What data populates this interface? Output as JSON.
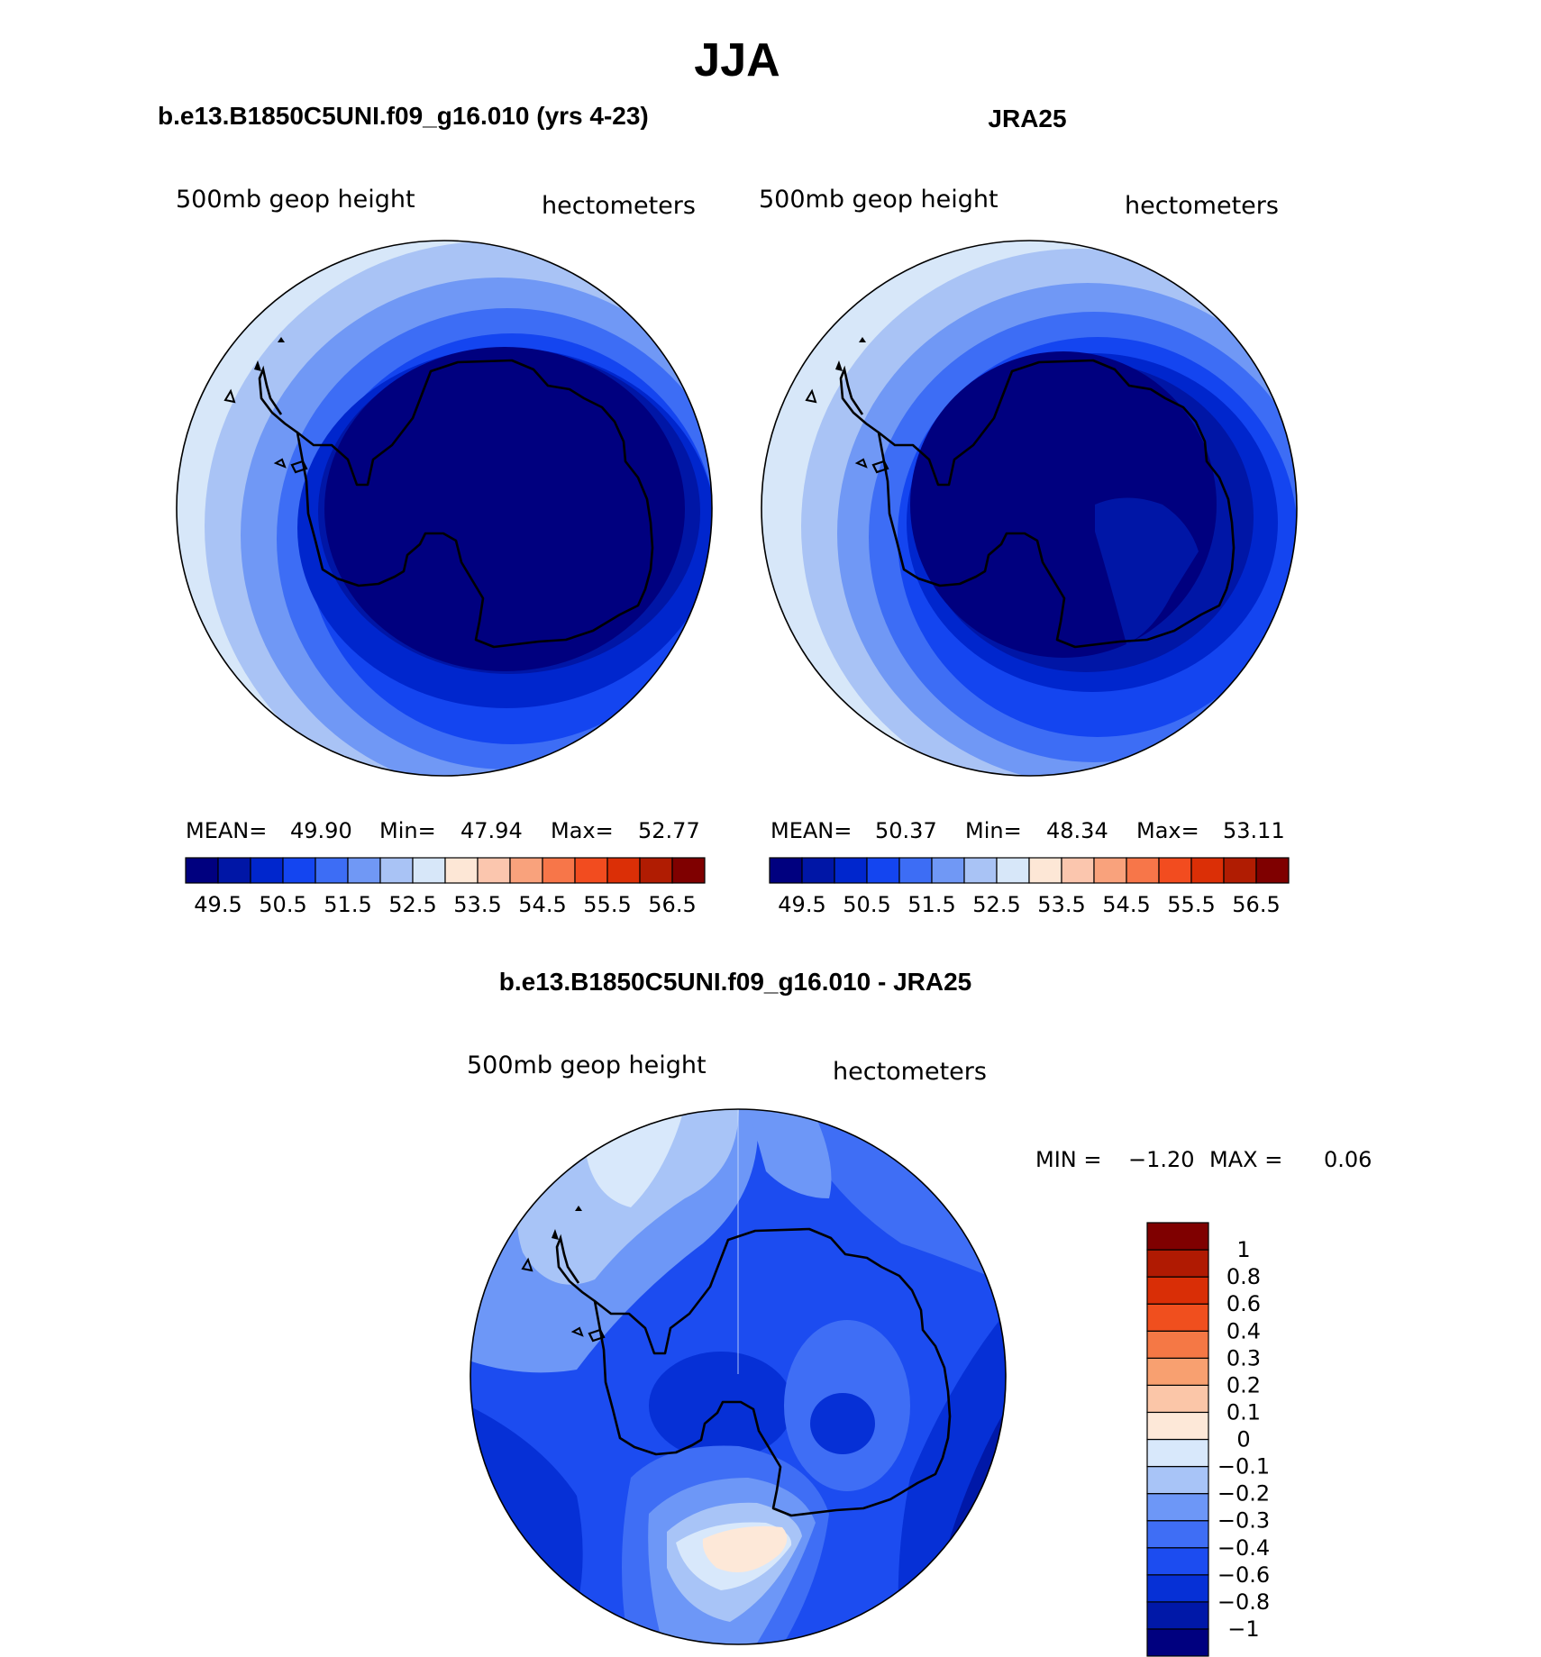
{
  "title": "JJA",
  "panels": [
    {
      "case_title": "b.e13.B1850C5UNI.f09_g16.010 (yrs 4-23)",
      "left_label": "500mb geop height",
      "right_label": "hectometers",
      "stats": {
        "mean_label": "MEAN=",
        "mean": "49.90",
        "min_label": "Min=",
        "min": "47.94",
        "max_label": "Max=",
        "max": "52.77"
      }
    },
    {
      "case_title": "JRA25",
      "left_label": "500mb geop height",
      "right_label": "hectometers",
      "stats": {
        "mean_label": "MEAN=",
        "mean": "50.37",
        "min_label": "Min=",
        "min": "48.34",
        "max_label": "Max=",
        "max": "53.11"
      }
    },
    {
      "case_title": "b.e13.B1850C5UNI.f09_g16.010 - JRA25",
      "left_label": "500mb geop height",
      "right_label": "hectometers",
      "stats": {
        "min_label": "MIN =",
        "min": "−1.20",
        "max_label": "MAX =",
        "max": "0.06"
      }
    }
  ],
  "colorbar_abs": {
    "colors": [
      "#00007f",
      "#0016a6",
      "#0026cd",
      "#1445f0",
      "#3d6df5",
      "#7098f5",
      "#a9c3f5",
      "#d7e7f9",
      "#fde7d6",
      "#fbc6ae",
      "#f9a27c",
      "#f77649",
      "#f24c1f",
      "#db2f06",
      "#b01c02",
      "#7f0000"
    ],
    "tick_labels": [
      "49.5",
      "50.5",
      "51.5",
      "52.5",
      "53.5",
      "54.5",
      "55.5",
      "56.5"
    ]
  },
  "colorbar_diff": {
    "colors": [
      "#00007f",
      "#0018a8",
      "#0630d6",
      "#1c4cf0",
      "#3f6ef5",
      "#6d97f7",
      "#a8c4f7",
      "#d8e8fb",
      "#fde8d8",
      "#fbc6a8",
      "#f8a070",
      "#f57845",
      "#f04f1e",
      "#d92e06",
      "#b01a02",
      "#7f0000"
    ],
    "tick_labels": [
      "−1",
      "−0.8",
      "−0.6",
      "−0.4",
      "−0.3",
      "−0.2",
      "−0.1",
      "0",
      "0.1",
      "0.2",
      "0.3",
      "0.4",
      "0.6",
      "0.8",
      "1"
    ]
  },
  "map_data": {
    "type": "filled-contour polar stereographic (south pole)",
    "variable": "500mb geop height",
    "units": "hectometers",
    "season": "JJA",
    "model_field": {
      "mean": 49.9,
      "min": 47.94,
      "max": 52.77
    },
    "obs_field": {
      "mean": 50.37,
      "min": 48.34,
      "max": 53.11
    },
    "difference_field": {
      "min": -1.2,
      "max": 0.06
    }
  }
}
